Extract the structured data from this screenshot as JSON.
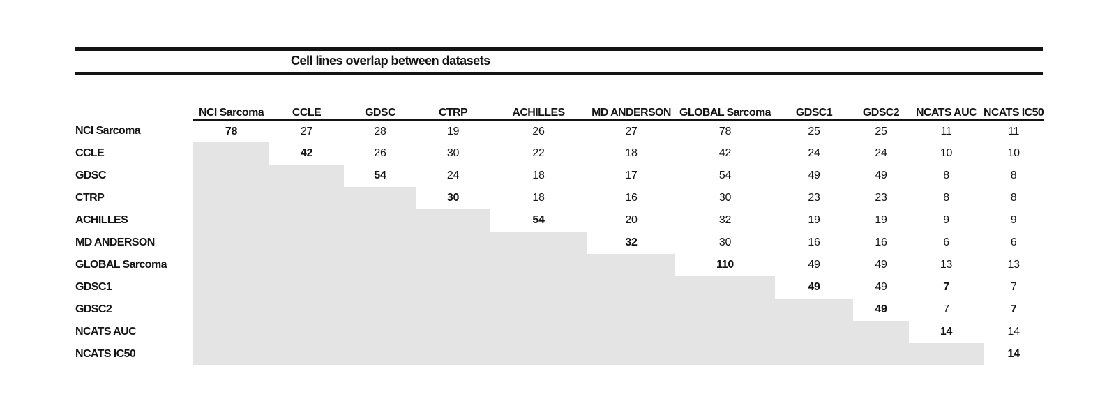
{
  "title": "Cell lines overlap between datasets",
  "chart_data": {
    "type": "table",
    "title": "Cell lines overlap between datasets",
    "col_labels": [
      "NCI Sarcoma",
      "CCLE",
      "GDSC",
      "CTRP",
      "ACHILLES",
      "MD ANDERSON",
      "GLOBAL Sarcoma",
      "GDSC1",
      "GDSC2",
      "NCATS AUC",
      "NCATS IC50"
    ],
    "row_labels": [
      "NCI Sarcoma",
      "CCLE",
      "GDSC",
      "CTRP",
      "ACHILLES",
      "MD ANDERSON",
      "GLOBAL Sarcoma",
      "GDSC1",
      "GDSC2",
      "NCATS AUC",
      "NCATS IC50"
    ],
    "matrix": [
      [
        78,
        27,
        28,
        19,
        26,
        27,
        78,
        25,
        25,
        11,
        11
      ],
      [
        null,
        42,
        26,
        30,
        22,
        18,
        42,
        24,
        24,
        10,
        10
      ],
      [
        null,
        null,
        54,
        24,
        18,
        17,
        54,
        49,
        49,
        8,
        8
      ],
      [
        null,
        null,
        null,
        30,
        18,
        16,
        30,
        23,
        23,
        8,
        8
      ],
      [
        null,
        null,
        null,
        null,
        54,
        20,
        32,
        19,
        19,
        9,
        9
      ],
      [
        null,
        null,
        null,
        null,
        null,
        32,
        30,
        16,
        16,
        6,
        6
      ],
      [
        null,
        null,
        null,
        null,
        null,
        null,
        110,
        49,
        49,
        13,
        13
      ],
      [
        null,
        null,
        null,
        null,
        null,
        null,
        null,
        49,
        49,
        7,
        7
      ],
      [
        null,
        null,
        null,
        null,
        null,
        null,
        null,
        null,
        49,
        7,
        7
      ],
      [
        null,
        null,
        null,
        null,
        null,
        null,
        null,
        null,
        null,
        14,
        14
      ],
      [
        null,
        null,
        null,
        null,
        null,
        null,
        null,
        null,
        null,
        null,
        14
      ]
    ],
    "bold_cells": [
      [
        0,
        0
      ],
      [
        1,
        1
      ],
      [
        2,
        2
      ],
      [
        3,
        3
      ],
      [
        4,
        4
      ],
      [
        5,
        5
      ],
      [
        6,
        6
      ],
      [
        7,
        7
      ],
      [
        7,
        9
      ],
      [
        8,
        8
      ],
      [
        8,
        10
      ],
      [
        9,
        9
      ],
      [
        10,
        10
      ]
    ],
    "shaded_lower_triangle": true,
    "legend_position": "none",
    "grid": false,
    "colors": {
      "shaded_cell": "#e5e4e4",
      "rule": "#141414",
      "text": "#141414",
      "background": "#ffffff"
    }
  }
}
